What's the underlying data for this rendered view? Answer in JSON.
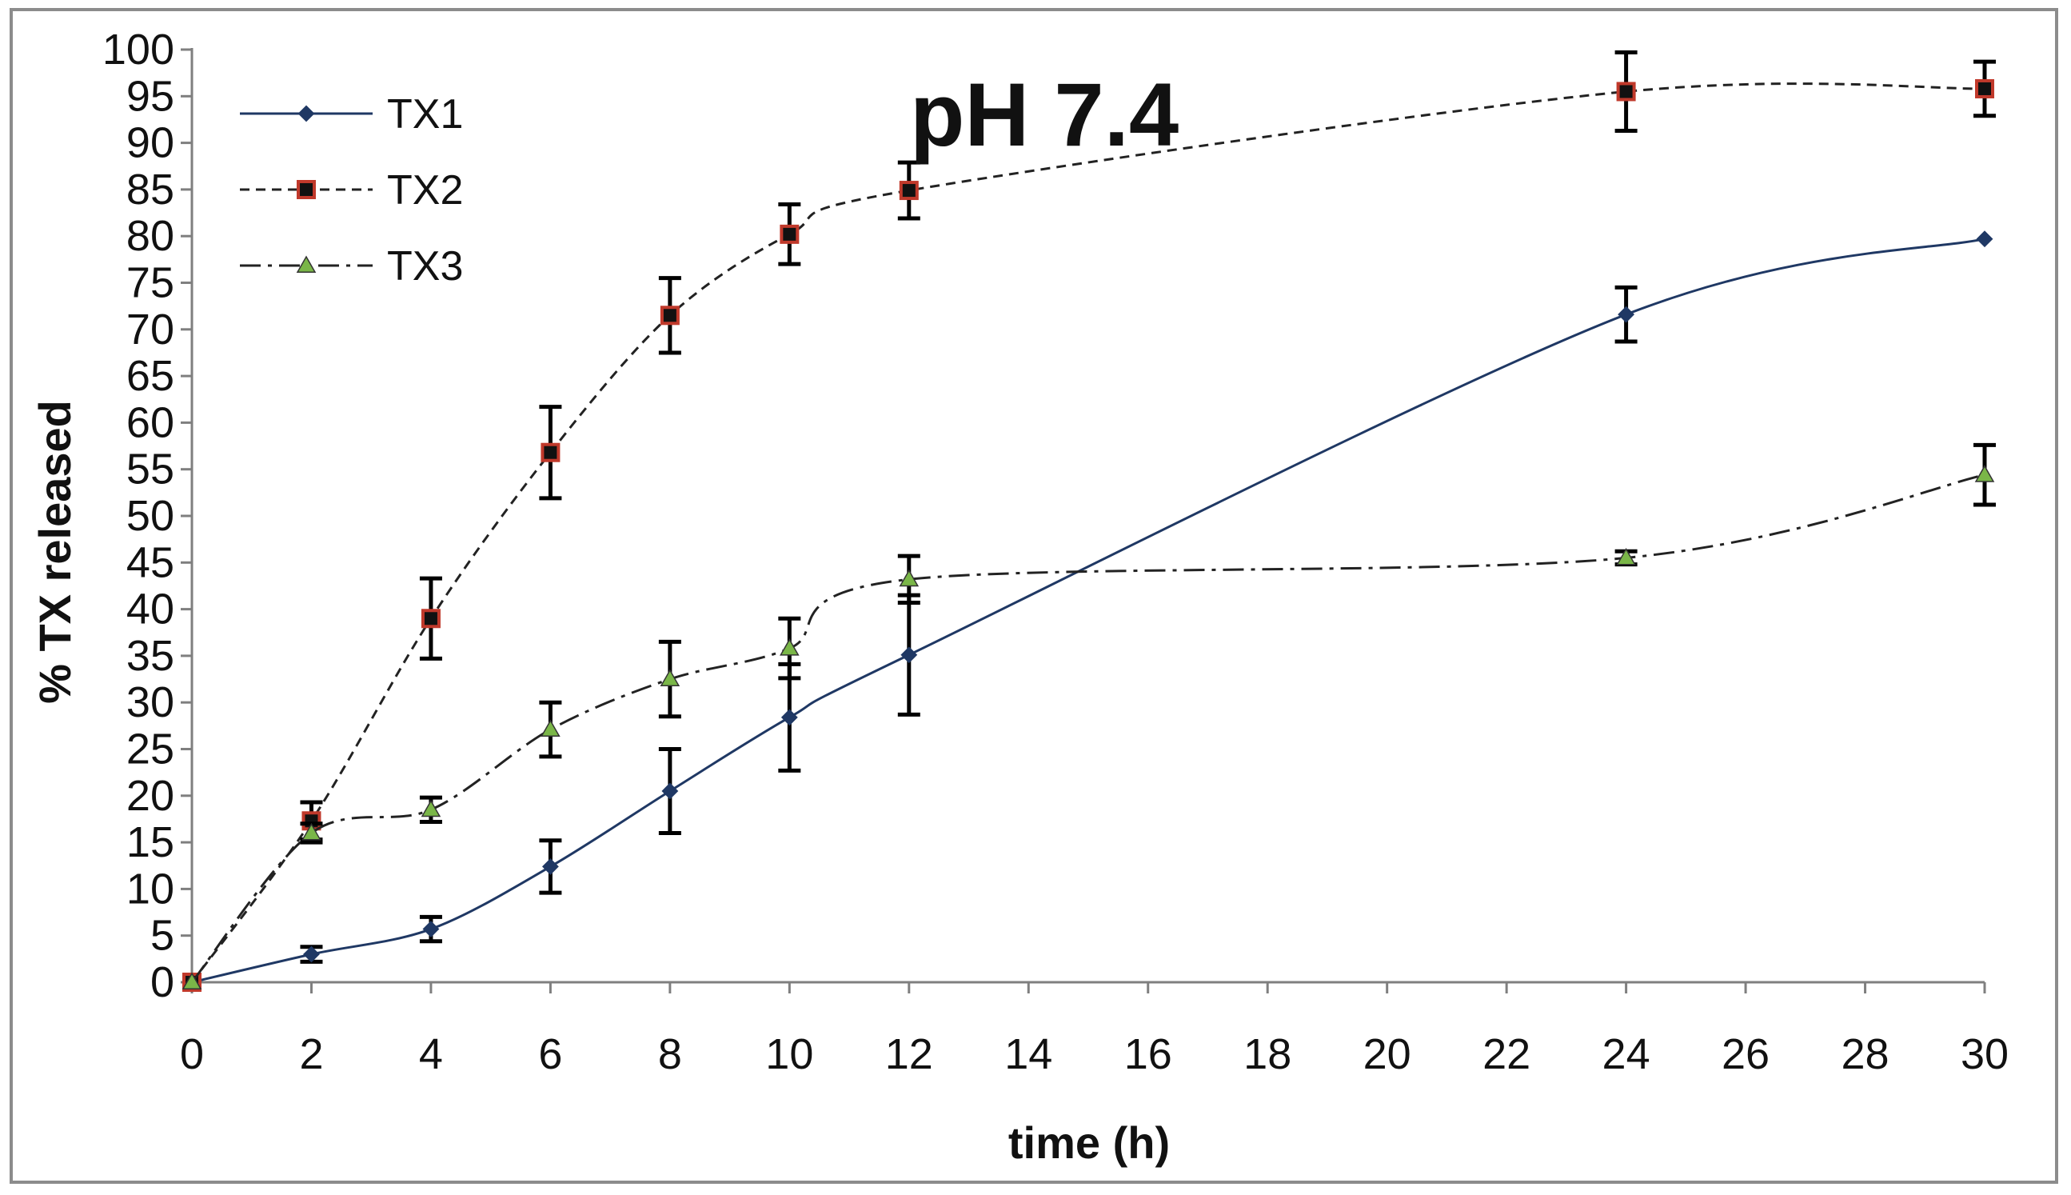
{
  "chart_data": {
    "type": "line",
    "title": "pH 7.4",
    "xlabel": "time (h)",
    "ylabel": "% TX released",
    "xlim": [
      0,
      30
    ],
    "ylim": [
      0,
      100
    ],
    "x_ticks": [
      "0",
      "2",
      "4",
      "6",
      "8",
      "10",
      "12",
      "14",
      "16",
      "18",
      "20",
      "22",
      "24",
      "26",
      "28",
      "30"
    ],
    "y_ticks": [
      "0",
      "5",
      "10",
      "15",
      "20",
      "25",
      "30",
      "35",
      "40",
      "45",
      "50",
      "55",
      "60",
      "65",
      "70",
      "75",
      "80",
      "85",
      "90",
      "95",
      "100"
    ],
    "x": [
      0,
      2,
      4,
      6,
      8,
      10,
      12,
      24,
      30
    ],
    "legend_position": "top-left",
    "grid": false,
    "series": [
      {
        "name": "TX1",
        "values": [
          0,
          3,
          5.7,
          12.4,
          20.5,
          28.4,
          35.1,
          71.6,
          79.7
        ],
        "errors": [
          0,
          0.8,
          1.3,
          2.8,
          4.5,
          5.7,
          6.4,
          2.9,
          0
        ],
        "line_style": "solid",
        "marker": "diamond",
        "color": "#1f3864",
        "marker_fill": "#1f3864"
      },
      {
        "name": "TX2",
        "values": [
          0,
          17.3,
          39,
          56.8,
          71.5,
          80.2,
          84.9,
          95.5,
          95.8
        ],
        "errors": [
          0,
          2,
          4.3,
          4.9,
          4,
          3.2,
          3,
          4.2,
          2.9
        ],
        "line_style": "dashed",
        "marker": "square",
        "color": "#222222",
        "marker_fill": "#111111",
        "marker_edge": "#c0392b"
      },
      {
        "name": "TX3",
        "values": [
          0,
          16,
          18.5,
          27.1,
          32.5,
          35.8,
          43.2,
          45.5,
          54.4
        ],
        "errors": [
          0,
          1,
          1.3,
          2.9,
          4,
          3.2,
          2.5,
          0.7,
          3.2
        ],
        "line_style": "dash-dot",
        "marker": "triangle",
        "color": "#222222",
        "marker_fill": "#7ab648"
      }
    ]
  }
}
